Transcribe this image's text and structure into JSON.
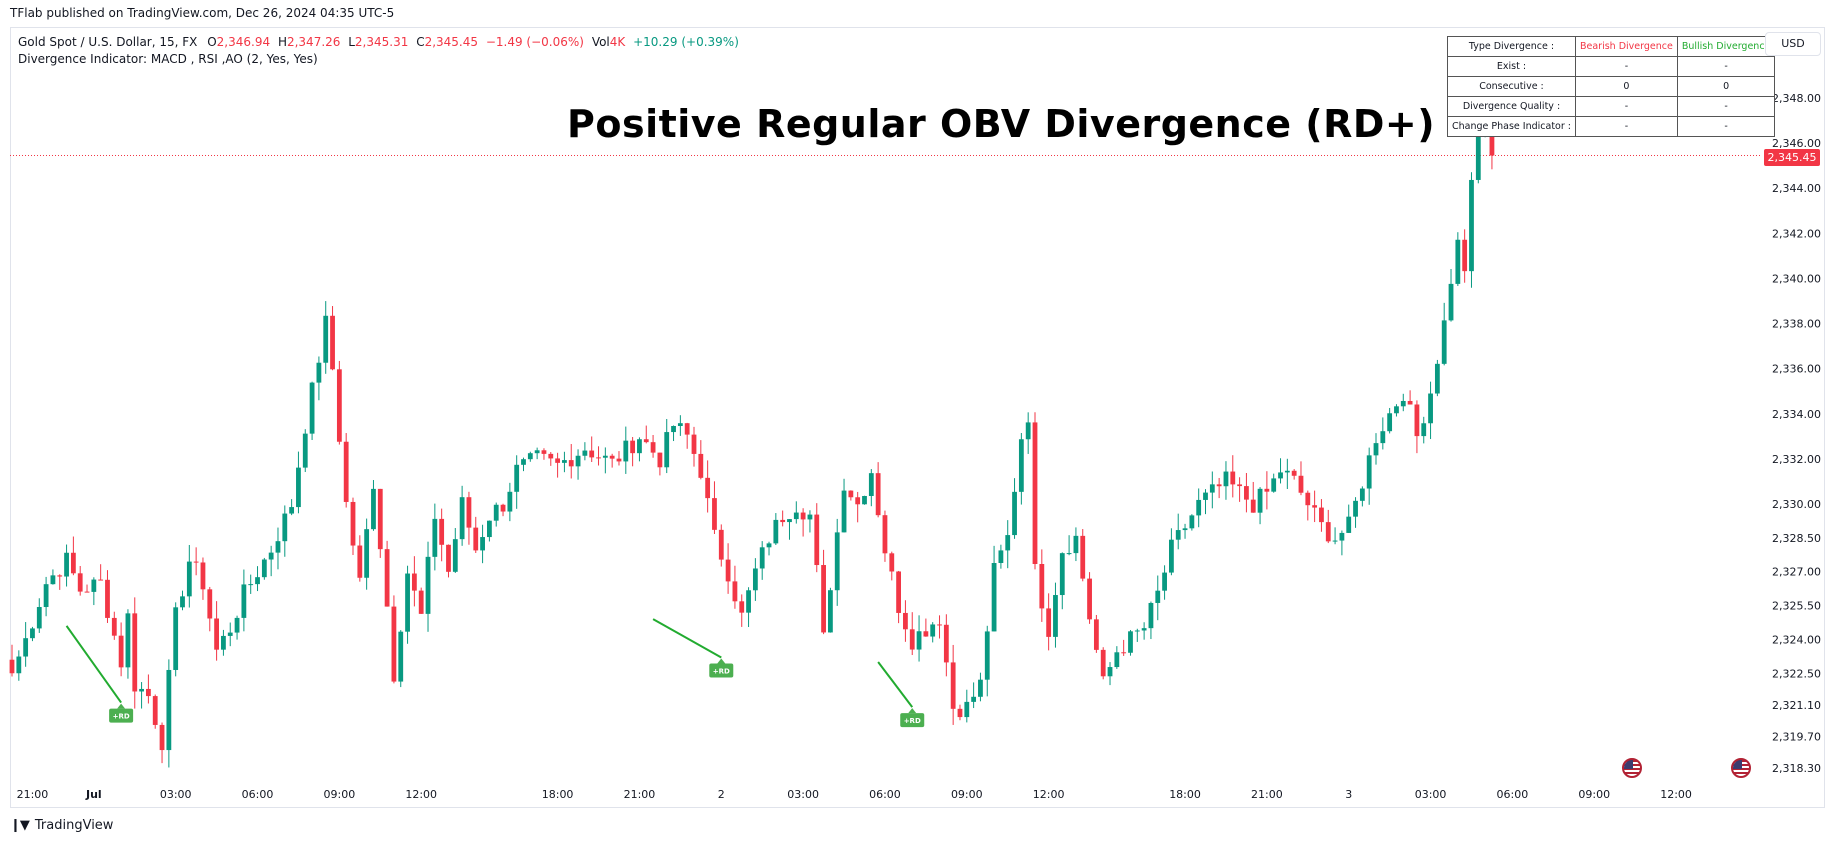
{
  "header": {
    "published": "TFlab published on TradingView.com, Dec 26, 2024 04:35 UTC-5"
  },
  "legend": {
    "symbol": "Gold Spot / U.S. Dollar, 15, FX",
    "open_label": "O",
    "open": "2,346.94",
    "high_label": "H",
    "high": "2,347.26",
    "low_label": "L",
    "low": "2,345.31",
    "close_label": "C",
    "close": "2,345.45",
    "change": "−1.49 (−0.06%)",
    "vol_label": "Vol",
    "vol": "4K",
    "vol_change": "+10.29 (+0.39%)",
    "indicator": "Divergence Indicator: MACD , RSI ,AO (2, Yes, Yes)"
  },
  "title": "Positive Regular OBV Divergence (RD+)",
  "info_table": {
    "headers": [
      "Type Divergence :",
      "Bearish Divergence",
      "Bullish Divergence"
    ],
    "rows": [
      {
        "label": "Exist :",
        "bearish": "-",
        "bullish": "-"
      },
      {
        "label": "Consecutive :",
        "bearish": "0",
        "bullish": "0"
      },
      {
        "label": "Divergence Quality :",
        "bearish": "-",
        "bullish": "-"
      },
      {
        "label": "Change Phase Indicator :",
        "bearish": "-",
        "bullish": "-"
      }
    ]
  },
  "currency_button": "USD",
  "current_price": "2,345.45",
  "footer": {
    "brand": "TradingView",
    "logo": "tradingview-logo-icon"
  },
  "colors": {
    "up": "#089981",
    "down": "#f23645",
    "divergence": "#22ab30",
    "badge": "#4caf50"
  },
  "chart_data": {
    "type": "candlestick",
    "ylim": [
      2317.7,
      2349.0
    ],
    "y_ticks": [
      2348.0,
      2346.0,
      2344.0,
      2342.0,
      2340.0,
      2338.0,
      2336.0,
      2334.0,
      2332.0,
      2330.0,
      2328.5,
      2327.0,
      2325.5,
      2324.0,
      2322.5,
      2321.1,
      2319.7,
      2318.3
    ],
    "y_tick_labels": [
      "2,348.00",
      "2,346.00",
      "2,344.00",
      "2,342.00",
      "2,340.00",
      "2,338.00",
      "2,336.00",
      "2,334.00",
      "2,332.00",
      "2,330.00",
      "2,328.50",
      "2,327.00",
      "2,325.50",
      "2,324.00",
      "2,322.50",
      "2,321.10",
      "2,319.70",
      "2,318.30"
    ],
    "x_ticks": [
      {
        "label": "21:00",
        "bar": 3
      },
      {
        "label": "Jul",
        "bar": 12
      },
      {
        "label": "03:00",
        "bar": 24
      },
      {
        "label": "06:00",
        "bar": 36
      },
      {
        "label": "09:00",
        "bar": 48
      },
      {
        "label": "12:00",
        "bar": 60
      },
      {
        "label": "18:00",
        "bar": 80
      },
      {
        "label": "21:00",
        "bar": 92
      },
      {
        "label": "2",
        "bar": 104
      },
      {
        "label": "03:00",
        "bar": 116
      },
      {
        "label": "06:00",
        "bar": 128
      },
      {
        "label": "09:00",
        "bar": 140
      },
      {
        "label": "12:00",
        "bar": 152
      },
      {
        "label": "18:00",
        "bar": 172
      },
      {
        "label": "21:00",
        "bar": 184
      },
      {
        "label": "3",
        "bar": 196
      },
      {
        "label": "03:00",
        "bar": 208
      },
      {
        "label": "06:00",
        "bar": 220
      },
      {
        "label": "09:00",
        "bar": 232
      },
      {
        "label": "12:00",
        "bar": 244
      }
    ],
    "close_anchors": [
      [
        0,
        2322.5
      ],
      [
        2,
        2324.0
      ],
      [
        5,
        2326.5
      ],
      [
        8,
        2327.5
      ],
      [
        10,
        2326.2
      ],
      [
        13,
        2326.5
      ],
      [
        16,
        2323.0
      ],
      [
        17,
        2325.0
      ],
      [
        18,
        2322.0
      ],
      [
        20,
        2321.5
      ],
      [
        22,
        2319.5
      ],
      [
        24,
        2325.0
      ],
      [
        26,
        2327.5
      ],
      [
        28,
        2326.5
      ],
      [
        30,
        2323.5
      ],
      [
        32,
        2324.5
      ],
      [
        34,
        2326.0
      ],
      [
        36,
        2327.0
      ],
      [
        38,
        2328.0
      ],
      [
        41,
        2330.0
      ],
      [
        43,
        2333.5
      ],
      [
        45,
        2336.5
      ],
      [
        46,
        2338.0
      ],
      [
        47,
        2336.0
      ],
      [
        49,
        2330.0
      ],
      [
        51,
        2326.5
      ],
      [
        53,
        2331.0
      ],
      [
        55,
        2325.5
      ],
      [
        56,
        2322.5
      ],
      [
        58,
        2327.0
      ],
      [
        60,
        2325.0
      ],
      [
        62,
        2329.5
      ],
      [
        64,
        2327.0
      ],
      [
        66,
        2330.0
      ],
      [
        68,
        2328.0
      ],
      [
        70,
        2329.5
      ],
      [
        72,
        2330.0
      ],
      [
        74,
        2331.5
      ],
      [
        77,
        2332.0
      ],
      [
        80,
        2331.7
      ],
      [
        84,
        2332.5
      ],
      [
        88,
        2331.8
      ],
      [
        92,
        2333.0
      ],
      [
        95,
        2332.0
      ],
      [
        97,
        2333.5
      ],
      [
        99,
        2333.0
      ],
      [
        101,
        2331.5
      ],
      [
        103,
        2328.5
      ],
      [
        105,
        2327.0
      ],
      [
        107,
        2325.0
      ],
      [
        109,
        2327.0
      ],
      [
        111,
        2328.5
      ],
      [
        113,
        2329.5
      ],
      [
        115,
        2330.0
      ],
      [
        117,
        2329.5
      ],
      [
        118,
        2327.0
      ],
      [
        119,
        2324.0
      ],
      [
        120,
        2326.5
      ],
      [
        122,
        2331.0
      ],
      [
        124,
        2330.0
      ],
      [
        126,
        2331.5
      ],
      [
        128,
        2328.0
      ],
      [
        130,
        2325.5
      ],
      [
        132,
        2324.0
      ],
      [
        134,
        2324.5
      ],
      [
        136,
        2325.0
      ],
      [
        137,
        2323.0
      ],
      [
        138,
        2321.0
      ],
      [
        140,
        2321.0
      ],
      [
        142,
        2322.0
      ],
      [
        144,
        2327.0
      ],
      [
        146,
        2328.5
      ],
      [
        148,
        2333.0
      ],
      [
        149,
        2334.0
      ],
      [
        150,
        2327.0
      ],
      [
        152,
        2324.5
      ],
      [
        154,
        2328.0
      ],
      [
        156,
        2328.5
      ],
      [
        158,
        2325.0
      ],
      [
        160,
        2322.0
      ],
      [
        162,
        2323.5
      ],
      [
        164,
        2324.0
      ],
      [
        166,
        2324.5
      ],
      [
        168,
        2326.0
      ],
      [
        170,
        2328.0
      ],
      [
        172,
        2329.0
      ],
      [
        174,
        2330.0
      ],
      [
        176,
        2330.5
      ],
      [
        178,
        2331.0
      ],
      [
        180,
        2330.5
      ],
      [
        182,
        2330.0
      ],
      [
        184,
        2330.5
      ],
      [
        186,
        2331.5
      ],
      [
        188,
        2331.0
      ],
      [
        190,
        2330.0
      ],
      [
        192,
        2329.0
      ],
      [
        194,
        2328.5
      ],
      [
        196,
        2329.0
      ],
      [
        198,
        2331.0
      ],
      [
        200,
        2333.0
      ],
      [
        202,
        2334.0
      ],
      [
        204,
        2335.0
      ],
      [
        206,
        2333.0
      ],
      [
        208,
        2335.0
      ],
      [
        210,
        2338.0
      ],
      [
        211,
        2340.0
      ],
      [
        212,
        2341.5
      ],
      [
        213,
        2340.5
      ],
      [
        214,
        2344.0
      ],
      [
        215,
        2346.5
      ],
      [
        216,
        2347.0
      ],
      [
        217,
        2345.45
      ]
    ],
    "divergences": [
      {
        "label": "+RD",
        "from_bar": 8,
        "from_price": 2324.6,
        "to_bar": 16,
        "to_price": 2321.2
      },
      {
        "label": "+RD",
        "from_bar": 94,
        "from_price": 2324.9,
        "to_bar": 104,
        "to_price": 2323.2
      },
      {
        "label": "+RD",
        "from_bar": 127,
        "from_price": 2323.0,
        "to_bar": 132,
        "to_price": 2321.0
      }
    ],
    "last_price": 2345.45
  }
}
